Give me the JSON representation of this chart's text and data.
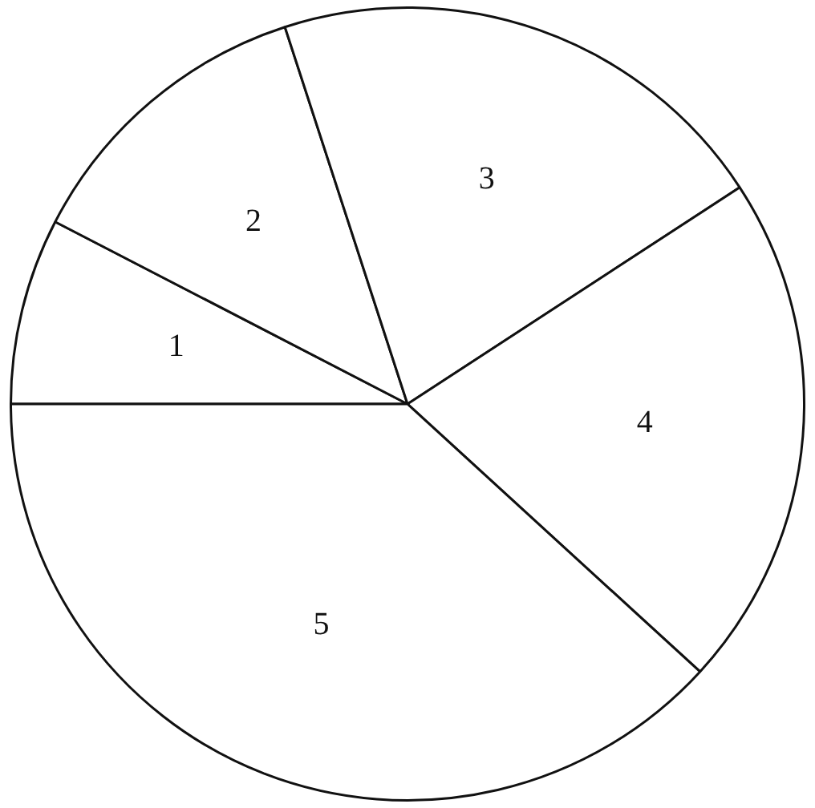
{
  "chart_data": {
    "type": "pie",
    "categories": [
      "1",
      "2",
      "3",
      "4",
      "5"
    ],
    "values": [
      7.6,
      12.4,
      20.8,
      21.0,
      38.2
    ],
    "colors": [
      "#ffffff",
      "#ffffff",
      "#ffffff",
      "#ffffff",
      "#ffffff"
    ],
    "legend": false
  }
}
